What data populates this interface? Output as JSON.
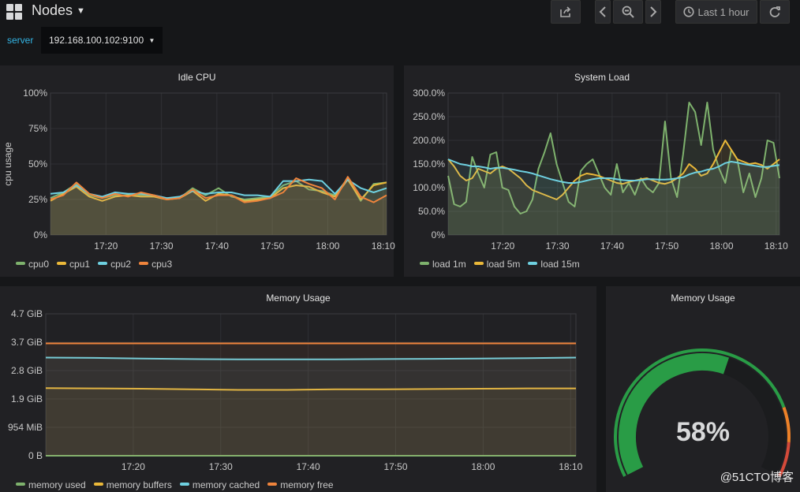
{
  "colors": {
    "green": "#7eb26d",
    "yellow": "#eab839",
    "cyan": "#6ed0e0",
    "orange": "#ef843c",
    "gauge_green": "#299c46",
    "gauge_orange": "#ed8128",
    "gauge_red": "#d44a3a"
  },
  "topbar": {
    "title": "Nodes",
    "time_range": "Last 1 hour",
    "icons": [
      "grid-icon",
      "share-icon",
      "chevron-left-icon",
      "zoom-out-icon",
      "chevron-right-icon",
      "clock-icon",
      "refresh-icon"
    ]
  },
  "template": {
    "label": "server",
    "value": "192.168.100.102:9100"
  },
  "watermark": "@51CTO博客",
  "chart_data": [
    {
      "id": "idle_cpu",
      "type": "line",
      "title": "Idle CPU",
      "ylabel": "cpu usage",
      "ylim": [
        0,
        100
      ],
      "yticks": [
        "100%",
        "75%",
        "50%",
        "25%",
        "0%"
      ],
      "x_ticks": [
        "17:20",
        "17:30",
        "17:40",
        "17:50",
        "18:00",
        "18:10"
      ],
      "series": [
        {
          "name": "cpu0",
          "color": "#7eb26d",
          "values": [
            26,
            30,
            36,
            28,
            26,
            28,
            28,
            28,
            27,
            26,
            26,
            33,
            28,
            33,
            27,
            25,
            26,
            27,
            35,
            38,
            32,
            31,
            28,
            40,
            24,
            36,
            37
          ]
        },
        {
          "name": "cpu1",
          "color": "#eab839",
          "values": [
            24,
            29,
            34,
            27,
            24,
            27,
            28,
            27,
            27,
            25,
            26,
            31,
            24,
            29,
            28,
            24,
            25,
            26,
            33,
            35,
            34,
            30,
            27,
            39,
            25,
            35,
            37
          ]
        },
        {
          "name": "cpu2",
          "color": "#6ed0e0",
          "values": [
            29,
            30,
            35,
            29,
            27,
            30,
            29,
            29,
            28,
            26,
            27,
            31,
            29,
            30,
            30,
            28,
            28,
            27,
            38,
            38,
            39,
            38,
            29,
            39,
            33,
            30,
            33
          ]
        },
        {
          "name": "cpu3",
          "color": "#ef843c",
          "values": [
            25,
            28,
            37,
            29,
            26,
            29,
            27,
            30,
            28,
            25,
            26,
            32,
            26,
            28,
            28,
            23,
            24,
            26,
            30,
            40,
            36,
            33,
            25,
            41,
            27,
            23,
            28
          ]
        }
      ]
    },
    {
      "id": "system_load",
      "type": "line",
      "title": "System Load",
      "ylim": [
        0,
        300
      ],
      "yticks": [
        "300.0%",
        "250.0%",
        "200.0%",
        "150.0%",
        "100.0%",
        "50.0%",
        "0%"
      ],
      "x_ticks": [
        "17:20",
        "17:30",
        "17:40",
        "17:50",
        "18:00",
        "18:10"
      ],
      "series": [
        {
          "name": "load 1m",
          "color": "#7eb26d",
          "values": [
            125,
            65,
            60,
            70,
            165,
            130,
            100,
            170,
            175,
            100,
            95,
            60,
            45,
            50,
            75,
            140,
            175,
            215,
            150,
            110,
            70,
            60,
            135,
            150,
            160,
            130,
            100,
            85,
            150,
            90,
            110,
            85,
            120,
            100,
            90,
            110,
            240,
            120,
            80,
            170,
            280,
            260,
            190,
            280,
            180,
            140,
            110,
            180,
            160,
            90,
            130,
            80,
            120,
            200,
            195,
            120
          ]
        },
        {
          "name": "load 5m",
          "color": "#eab839",
          "values": [
            160,
            145,
            125,
            115,
            120,
            140,
            135,
            130,
            140,
            145,
            140,
            130,
            120,
            105,
            95,
            90,
            85,
            80,
            75,
            85,
            100,
            115,
            125,
            130,
            128,
            125,
            120,
            115,
            110,
            108,
            112,
            115,
            118,
            120,
            115,
            110,
            108,
            112,
            120,
            130,
            150,
            140,
            125,
            130,
            150,
            175,
            200,
            180,
            160,
            155,
            150,
            152,
            148,
            140,
            150,
            160
          ]
        },
        {
          "name": "load 15m",
          "color": "#6ed0e0",
          "values": [
            160,
            155,
            150,
            148,
            145,
            145,
            143,
            140,
            142,
            142,
            140,
            138,
            135,
            133,
            130,
            126,
            122,
            118,
            115,
            112,
            110,
            110,
            112,
            115,
            118,
            120,
            120,
            120,
            118,
            116,
            115,
            115,
            116,
            118,
            118,
            117,
            117,
            118,
            120,
            122,
            128,
            132,
            134,
            138,
            140,
            145,
            152,
            155,
            153,
            150,
            148,
            146,
            144,
            144,
            146,
            148
          ]
        }
      ]
    },
    {
      "id": "memory_usage_graph",
      "type": "line",
      "title": "Memory Usage",
      "ylim": [
        0,
        4.7
      ],
      "yticks": [
        "4.7 GiB",
        "3.7 GiB",
        "2.8 GiB",
        "1.9 GiB",
        "954 MiB",
        "0 B"
      ],
      "x_ticks": [
        "17:20",
        "17:30",
        "17:40",
        "17:50",
        "18:00",
        "18:10"
      ],
      "series": [
        {
          "name": "memory used",
          "color": "#7eb26d",
          "values": [
            0,
            0,
            0,
            0,
            0,
            0,
            0,
            0,
            0,
            0,
            0,
            0
          ]
        },
        {
          "name": "memory buffers",
          "color": "#eab839",
          "values": [
            2.24,
            2.23,
            2.22,
            2.2,
            2.18,
            2.18,
            2.2,
            2.2,
            2.21,
            2.22,
            2.23,
            2.23
          ]
        },
        {
          "name": "memory cached",
          "color": "#6ed0e0",
          "values": [
            3.25,
            3.24,
            3.22,
            3.2,
            3.19,
            3.19,
            3.19,
            3.2,
            3.21,
            3.22,
            3.23,
            3.25
          ]
        },
        {
          "name": "memory free",
          "color": "#ef843c",
          "values": [
            3.72,
            3.72,
            3.72,
            3.72,
            3.72,
            3.72,
            3.72,
            3.72,
            3.72,
            3.72,
            3.72,
            3.72
          ]
        }
      ]
    }
  ],
  "gauge": {
    "title": "Memory Usage",
    "value": 58,
    "display": "58%",
    "thresholds": [
      80,
      90
    ]
  }
}
